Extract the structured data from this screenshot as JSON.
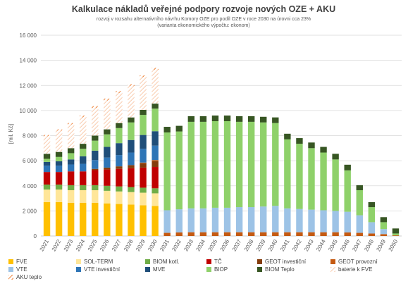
{
  "chart_data": {
    "type": "bar",
    "stacked": true,
    "title": "Kalkulace nákladů veřejné podpory rozvoje nových OZE + AKU",
    "subtitle_lines": [
      "rozvoj v rozsahu alternativního návrhu Komory OZE pro podíl OZE v roce 2030 na úrovni cca 23%",
      "(varianta ekonomického výpočtu: ekonom)"
    ],
    "ylabel": "[mil. Kč]",
    "xlabel": "",
    "ylim": [
      0,
      16000
    ],
    "yticks": [
      0,
      2000,
      4000,
      6000,
      8000,
      10000,
      12000,
      14000,
      16000
    ],
    "ytick_labels": [
      "0",
      "2 000",
      "4 000",
      "6 000",
      "8 000",
      "10 000",
      "12 000",
      "14 000",
      "16 000"
    ],
    "grid": true,
    "legend_position": "bottom",
    "categories": [
      "2021",
      "2022",
      "2023",
      "2024",
      "2025",
      "2026",
      "2027",
      "2028",
      "2029",
      "2030",
      "2031",
      "2032",
      "2033",
      "2034",
      "2035",
      "2036",
      "2037",
      "2038",
      "2039",
      "2040",
      "2041",
      "2042",
      "2043",
      "2044",
      "2045",
      "2046",
      "2047",
      "2048",
      "2049",
      "2050"
    ],
    "series": [
      {
        "name": "FVE",
        "color": "#ffc000",
        "pattern": "solid",
        "values": [
          2700,
          2700,
          2650,
          2650,
          2650,
          2600,
          2550,
          2500,
          2450,
          2400,
          0,
          0,
          0,
          0,
          0,
          0,
          0,
          0,
          0,
          0,
          0,
          0,
          0,
          0,
          0,
          0,
          0,
          0,
          0,
          0
        ]
      },
      {
        "name": "SOL-TERM",
        "color": "#ffe699",
        "pattern": "solid",
        "values": [
          1000,
          1000,
          1000,
          1000,
          1000,
          1000,
          1000,
          1000,
          1000,
          1000,
          0,
          0,
          0,
          0,
          0,
          0,
          0,
          0,
          0,
          0,
          0,
          0,
          0,
          0,
          0,
          0,
          0,
          0,
          0,
          0
        ]
      },
      {
        "name": "BIOM kotl.",
        "color": "#70ad47",
        "pattern": "solid",
        "values": [
          400,
          400,
          400,
          400,
          400,
          400,
          400,
          400,
          400,
          400,
          0,
          0,
          0,
          0,
          0,
          0,
          0,
          0,
          0,
          0,
          0,
          0,
          0,
          0,
          0,
          0,
          0,
          0,
          0,
          0
        ]
      },
      {
        "name": "TČ",
        "color": "#c00000",
        "pattern": "solid",
        "values": [
          1000,
          1000,
          1100,
          1100,
          1200,
          1300,
          1400,
          1500,
          1600,
          1700,
          0,
          0,
          0,
          0,
          0,
          0,
          0,
          0,
          0,
          0,
          0,
          0,
          0,
          0,
          0,
          0,
          0,
          0,
          0,
          0
        ]
      },
      {
        "name": "GEOT investiční",
        "color": "#843c0c",
        "pattern": "solid",
        "values": [
          0,
          0,
          0,
          0,
          100,
          150,
          200,
          250,
          350,
          450,
          0,
          0,
          0,
          0,
          0,
          0,
          0,
          0,
          0,
          0,
          0,
          0,
          0,
          0,
          0,
          0,
          0,
          0,
          0,
          0
        ]
      },
      {
        "name": "GEOT provozní",
        "color": "#c55a11",
        "pattern": "solid",
        "values": [
          0,
          0,
          0,
          0,
          0,
          0,
          0,
          0,
          50,
          100,
          250,
          280,
          300,
          300,
          300,
          300,
          300,
          300,
          300,
          300,
          300,
          300,
          300,
          300,
          300,
          280,
          250,
          200,
          150,
          50
        ]
      },
      {
        "name": "VTE",
        "color": "#9dc3e6",
        "pattern": "solid",
        "values": [
          0,
          0,
          0,
          0,
          0,
          0,
          0,
          0,
          0,
          0,
          1800,
          1850,
          1900,
          1900,
          1950,
          1950,
          2000,
          2000,
          2050,
          2100,
          1900,
          1850,
          1800,
          1750,
          1700,
          1650,
          1400,
          900,
          400,
          0
        ]
      },
      {
        "name": "VTE investiční",
        "color": "#2e75b6",
        "pattern": "solid",
        "values": [
          500,
          500,
          550,
          600,
          700,
          800,
          900,
          1000,
          1100,
          1150,
          0,
          0,
          0,
          0,
          0,
          0,
          0,
          0,
          0,
          0,
          0,
          0,
          0,
          0,
          0,
          0,
          0,
          0,
          0,
          0
        ]
      },
      {
        "name": "MVE",
        "color": "#1f4e79",
        "pattern": "solid",
        "values": [
          300,
          350,
          400,
          600,
          750,
          850,
          950,
          1000,
          1100,
          1150,
          0,
          0,
          0,
          0,
          0,
          0,
          0,
          0,
          0,
          0,
          0,
          0,
          0,
          0,
          0,
          0,
          0,
          0,
          0,
          0
        ]
      },
      {
        "name": "BIOP",
        "color": "#8fd16a",
        "pattern": "solid",
        "values": [
          250,
          350,
          500,
          600,
          800,
          1000,
          1200,
          1400,
          1600,
          1800,
          6200,
          6200,
          6900,
          6900,
          6900,
          6900,
          6800,
          6800,
          6700,
          6600,
          5500,
          5200,
          4900,
          4600,
          4100,
          3300,
          2000,
          1200,
          550,
          150
        ]
      },
      {
        "name": "BIOM Teplo",
        "color": "#375623",
        "pattern": "solid",
        "values": [
          400,
          400,
          400,
          400,
          400,
          400,
          400,
          400,
          400,
          400,
          450,
          450,
          450,
          450,
          450,
          450,
          450,
          450,
          450,
          450,
          450,
          450,
          450,
          450,
          450,
          450,
          400,
          400,
          400,
          400
        ]
      },
      {
        "name": "baterie k FVE",
        "color": "#f8cbad",
        "pattern": "hatch",
        "values": [
          1400,
          1700,
          1900,
          2100,
          2200,
          2300,
          2400,
          2500,
          2600,
          2700,
          0,
          0,
          0,
          0,
          0,
          0,
          0,
          0,
          0,
          0,
          0,
          0,
          0,
          0,
          0,
          0,
          0,
          0,
          0,
          0
        ]
      },
      {
        "name": "AKU teplo",
        "color": "#ed7d31",
        "pattern": "hatch",
        "values": [
          100,
          100,
          100,
          150,
          150,
          150,
          150,
          150,
          150,
          150,
          0,
          0,
          0,
          0,
          0,
          0,
          0,
          0,
          0,
          0,
          0,
          0,
          0,
          0,
          0,
          0,
          0,
          0,
          0,
          0
        ]
      }
    ]
  }
}
